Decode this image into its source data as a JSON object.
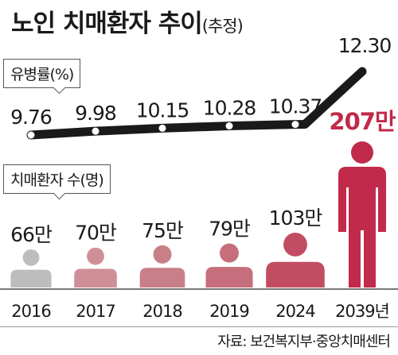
{
  "title": "노인 치매환자 추이",
  "title_note": "(추정)",
  "source": "자료: 보건복지부·중앙치매센터",
  "colors": {
    "line": "#1a1a1a",
    "marker": "#ffffff",
    "person_light": "#bdbdbd",
    "person_highlight": "#c12a4a",
    "highlight_text": "#c12a4a",
    "text": "#1a1a1a"
  },
  "chart_data": [
    {
      "type": "line",
      "legend": "유병률(%)",
      "categories": [
        "2016",
        "2017",
        "2018",
        "2019",
        "2024",
        "2039년"
      ],
      "values": [
        9.76,
        9.98,
        10.15,
        10.28,
        10.37,
        12.3
      ],
      "labels": [
        "9.76",
        "9.98",
        "10.15",
        "10.28",
        "10.37",
        "12.30"
      ]
    },
    {
      "type": "bar",
      "legend": "치매환자 수(명)",
      "categories": [
        "2016",
        "2017",
        "2018",
        "2019",
        "2024",
        "2039년"
      ],
      "values_man": [
        66,
        70,
        75,
        79,
        103,
        207
      ],
      "labels": [
        "66만",
        "70만",
        "75만",
        "79만",
        "103만",
        "207만"
      ],
      "colors": [
        "#bdbdbd",
        "#cf8f96",
        "#c97f88",
        "#c66e7c",
        "#c24d62",
        "#c12a4a"
      ]
    }
  ]
}
